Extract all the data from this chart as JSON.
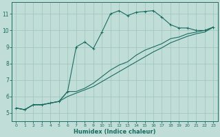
{
  "background_color": "#c0ddd8",
  "grid_color": "#a0c8c0",
  "line_color": "#1a6b60",
  "xlabel": "Humidex (Indice chaleur)",
  "xlim": [
    -0.5,
    23.5
  ],
  "ylim": [
    4.5,
    11.7
  ],
  "xticks": [
    0,
    1,
    2,
    3,
    4,
    5,
    6,
    7,
    8,
    9,
    10,
    11,
    12,
    13,
    14,
    15,
    16,
    17,
    18,
    19,
    20,
    21,
    22,
    23
  ],
  "yticks": [
    5,
    6,
    7,
    8,
    9,
    10,
    11
  ],
  "line1_x": [
    0,
    1,
    2,
    3,
    4,
    5,
    6,
    7,
    8,
    9,
    10,
    11,
    12,
    13,
    14,
    15,
    16,
    17,
    18,
    19,
    20,
    21,
    22,
    23
  ],
  "line1_y": [
    5.3,
    5.2,
    5.5,
    5.5,
    5.6,
    5.7,
    6.3,
    9.0,
    9.3,
    8.9,
    9.9,
    11.0,
    11.2,
    10.9,
    11.1,
    11.15,
    11.2,
    10.8,
    10.35,
    10.15,
    10.15,
    10.0,
    10.0,
    10.2
  ],
  "line2_x": [
    0,
    1,
    2,
    3,
    4,
    5,
    6,
    7,
    8,
    9,
    10,
    11,
    12,
    13,
    14,
    15,
    16,
    17,
    18,
    19,
    20,
    21,
    22,
    23
  ],
  "line2_y": [
    5.3,
    5.2,
    5.5,
    5.5,
    5.6,
    5.7,
    6.3,
    6.3,
    6.5,
    6.8,
    7.2,
    7.6,
    7.9,
    8.1,
    8.5,
    8.8,
    9.0,
    9.2,
    9.5,
    9.6,
    9.8,
    9.9,
    10.0,
    10.2
  ],
  "line3_x": [
    0,
    1,
    2,
    3,
    4,
    5,
    6,
    7,
    8,
    9,
    10,
    11,
    12,
    13,
    14,
    15,
    16,
    17,
    18,
    19,
    20,
    21,
    22,
    23
  ],
  "line3_y": [
    5.3,
    5.2,
    5.5,
    5.5,
    5.6,
    5.7,
    6.0,
    6.2,
    6.4,
    6.6,
    6.9,
    7.2,
    7.5,
    7.8,
    8.1,
    8.4,
    8.7,
    8.95,
    9.25,
    9.45,
    9.65,
    9.8,
    9.9,
    10.2
  ]
}
